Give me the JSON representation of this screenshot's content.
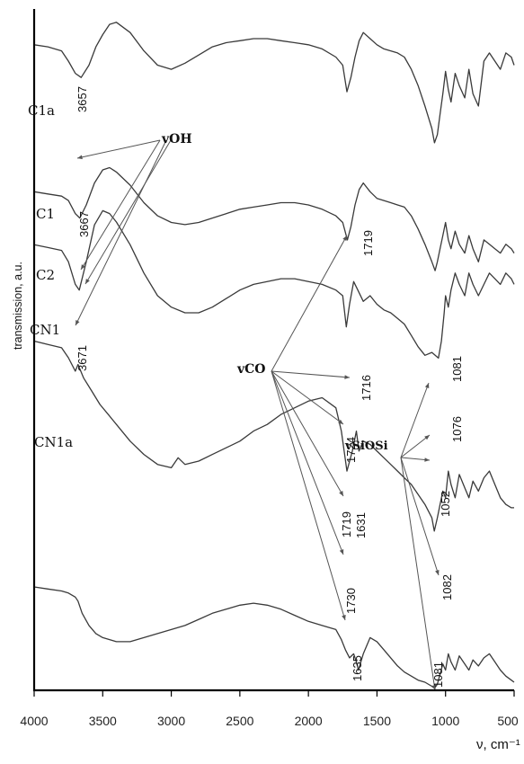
{
  "chart_data": {
    "type": "line",
    "title": "",
    "xlabel": "ν, cm⁻¹",
    "ylabel": "transmission, a.u.",
    "xlim": [
      4000,
      500
    ],
    "x_ticks": [
      4000,
      3500,
      3000,
      2500,
      2000,
      1500,
      1000,
      500
    ],
    "grid": false,
    "legend": "none",
    "series": [
      {
        "name": "C1a",
        "x": [
          4000,
          3900,
          3800,
          3750,
          3700,
          3657,
          3600,
          3550,
          3500,
          3450,
          3400,
          3300,
          3200,
          3100,
          3000,
          2900,
          2800,
          2700,
          2600,
          2500,
          2400,
          2300,
          2200,
          2100,
          2000,
          1900,
          1800,
          1750,
          1719,
          1690,
          1660,
          1630,
          1600,
          1550,
          1500,
          1450,
          1400,
          1350,
          1300,
          1250,
          1200,
          1150,
          1100,
          1081,
          1060,
          1040,
          1020,
          1000,
          980,
          960,
          930,
          900,
          860,
          830,
          800,
          760,
          720,
          680,
          640,
          600,
          560,
          520,
          500
        ],
        "y": [
          96,
          95,
          93,
          88,
          82,
          80,
          86,
          95,
          101,
          106,
          107,
          102,
          93,
          86,
          84,
          87,
          91,
          95,
          97,
          98,
          99,
          99,
          98,
          97,
          96,
          94,
          90,
          86,
          73,
          80,
          90,
          98,
          102,
          99,
          96,
          94,
          93,
          92,
          90,
          84,
          76,
          66,
          55,
          48,
          52,
          62,
          72,
          83,
          74,
          68,
          82,
          76,
          70,
          84,
          72,
          66,
          88,
          92,
          88,
          84,
          92,
          90,
          86
        ]
      },
      {
        "name": "C1",
        "x": [
          4000,
          3900,
          3800,
          3750,
          3700,
          3667,
          3620,
          3560,
          3500,
          3450,
          3400,
          3300,
          3200,
          3100,
          3000,
          2900,
          2800,
          2700,
          2600,
          2500,
          2400,
          2300,
          2200,
          2100,
          2000,
          1900,
          1800,
          1750,
          1716,
          1690,
          1660,
          1630,
          1600,
          1550,
          1500,
          1450,
          1400,
          1350,
          1300,
          1250,
          1200,
          1150,
          1100,
          1076,
          1060,
          1040,
          1020,
          1000,
          980,
          960,
          930,
          900,
          860,
          830,
          800,
          760,
          720,
          680,
          640,
          600,
          560,
          520,
          500
        ],
        "y": [
          84,
          83,
          82,
          80,
          74,
          72,
          78,
          88,
          94,
          95,
          93,
          87,
          79,
          73,
          70,
          69,
          70,
          72,
          74,
          76,
          77,
          78,
          79,
          79,
          78,
          76,
          73,
          70,
          62,
          68,
          78,
          85,
          88,
          84,
          81,
          80,
          79,
          78,
          77,
          73,
          67,
          60,
          52,
          48,
          52,
          58,
          64,
          70,
          62,
          58,
          66,
          60,
          56,
          64,
          58,
          52,
          62,
          60,
          58,
          56,
          60,
          58,
          56
        ]
      },
      {
        "name": "C2",
        "x": [
          4000,
          3900,
          3800,
          3750,
          3700,
          3671,
          3620,
          3560,
          3500,
          3450,
          3400,
          3300,
          3200,
          3100,
          3000,
          2900,
          2800,
          2700,
          2600,
          2500,
          2400,
          2300,
          2200,
          2100,
          2000,
          1900,
          1800,
          1750,
          1724,
          1700,
          1670,
          1640,
          1600,
          1550,
          1500,
          1450,
          1400,
          1350,
          1300,
          1250,
          1200,
          1150,
          1100,
          1052,
          1030,
          1010,
          1000,
          980,
          960,
          930,
          900,
          860,
          830,
          800,
          760,
          720,
          680,
          640,
          600,
          560,
          520,
          500
        ],
        "y": [
          76,
          75,
          74,
          70,
          62,
          60,
          70,
          83,
          88,
          87,
          84,
          76,
          66,
          58,
          54,
          52,
          52,
          54,
          57,
          60,
          62,
          63,
          64,
          64,
          63,
          62,
          60,
          58,
          47,
          55,
          63,
          60,
          56,
          58,
          55,
          53,
          52,
          50,
          48,
          44,
          40,
          37,
          38,
          36,
          42,
          52,
          58,
          54,
          60,
          66,
          62,
          58,
          66,
          62,
          58,
          62,
          66,
          64,
          62,
          66,
          64,
          62
        ]
      },
      {
        "name": "CN1",
        "x": [
          4000,
          3900,
          3800,
          3750,
          3700,
          3680,
          3640,
          3580,
          3520,
          3460,
          3400,
          3300,
          3200,
          3100,
          3000,
          2950,
          2900,
          2800,
          2700,
          2600,
          2500,
          2400,
          2300,
          2200,
          2100,
          2000,
          1900,
          1800,
          1760,
          1719,
          1680,
          1650,
          1631,
          1600,
          1550,
          1500,
          1450,
          1400,
          1350,
          1300,
          1250,
          1200,
          1150,
          1100,
          1082,
          1060,
          1040,
          1020,
          1000,
          980,
          960,
          930,
          900,
          860,
          830,
          800,
          760,
          720,
          680,
          640,
          600,
          560,
          520,
          500
        ],
        "y": [
          67,
          66,
          65,
          62,
          58,
          60,
          56,
          52,
          48,
          45,
          42,
          37,
          33,
          30,
          29,
          32,
          30,
          31,
          33,
          35,
          37,
          40,
          42,
          45,
          47,
          49,
          50,
          47,
          40,
          28,
          34,
          40,
          34,
          37,
          36,
          34,
          32,
          30,
          28,
          26,
          24,
          21,
          18,
          14,
          10,
          14,
          18,
          22,
          20,
          28,
          24,
          20,
          27,
          23,
          20,
          25,
          22,
          26,
          28,
          24,
          20,
          18,
          17,
          17
        ]
      },
      {
        "name": "CN1a",
        "x": [
          4000,
          3900,
          3800,
          3750,
          3700,
          3680,
          3650,
          3600,
          3550,
          3500,
          3400,
          3300,
          3200,
          3100,
          3000,
          2900,
          2800,
          2700,
          2600,
          2500,
          2400,
          2300,
          2200,
          2100,
          2000,
          1900,
          1800,
          1760,
          1730,
          1700,
          1670,
          1650,
          1635,
          1600,
          1550,
          1500,
          1450,
          1400,
          1350,
          1300,
          1250,
          1200,
          1150,
          1100,
          1081,
          1060,
          1040,
          1020,
          1000,
          980,
          960,
          930,
          900,
          860,
          830,
          800,
          760,
          720,
          680,
          640,
          600,
          560,
          520,
          500
        ],
        "y": [
          51,
          50,
          49,
          48,
          46,
          44,
          38,
          32,
          28,
          26,
          24,
          24,
          26,
          28,
          30,
          32,
          35,
          38,
          40,
          42,
          43,
          42,
          40,
          37,
          34,
          32,
          30,
          25,
          20,
          16,
          18,
          14,
          10,
          18,
          26,
          24,
          20,
          16,
          12,
          9,
          7,
          5,
          4,
          2,
          1,
          3,
          8,
          13,
          10,
          18,
          14,
          10,
          17,
          13,
          10,
          15,
          12,
          16,
          18,
          14,
          10,
          7,
          5,
          4
        ]
      }
    ],
    "series_labels": [
      "C1a",
      "C1",
      "C2",
      "CN1",
      "CN1a"
    ],
    "peak_labels": [
      "3657",
      "3667",
      "3671",
      "1719",
      "1716",
      "1724",
      "1719",
      "1631",
      "1730",
      "1635",
      "1081",
      "1076",
      "1052",
      "1082",
      "1081"
    ],
    "annotations": [
      "vOH",
      "vCO",
      "vSiOSi"
    ]
  }
}
